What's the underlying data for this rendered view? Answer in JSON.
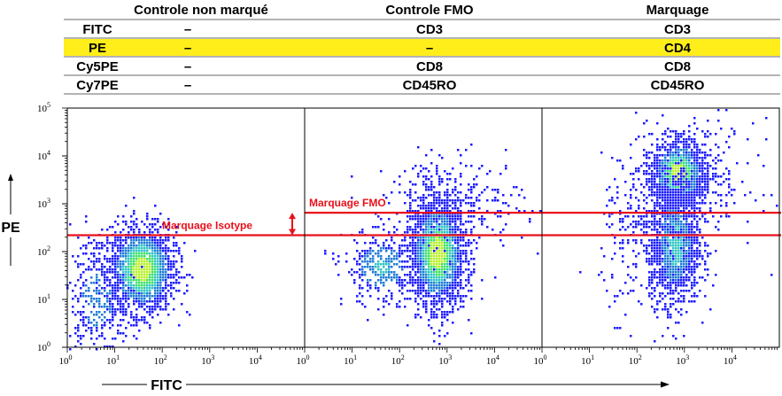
{
  "table": {
    "columns": [
      "",
      "Controle non marqué",
      "Controle FMO",
      "Marquage"
    ],
    "rows": [
      {
        "name": "FITC",
        "cells": [
          "–",
          "CD3",
          "CD3"
        ],
        "highlight": false
      },
      {
        "name": "PE",
        "cells": [
          "–",
          "–",
          "CD4"
        ],
        "highlight": true
      },
      {
        "name": "Cy5PE",
        "cells": [
          "–",
          "CD8",
          "CD8"
        ],
        "highlight": false
      },
      {
        "name": "Cy7PE",
        "cells": [
          "–",
          "CD45RO",
          "CD45RO"
        ],
        "highlight": false
      }
    ],
    "highlight_color": "#ffee1a"
  },
  "chart_data": {
    "type": "scatter",
    "x_scale": "log",
    "y_scale": "log",
    "xlabel": "FITC",
    "ylabel": "PE",
    "xlim": [
      1,
      100000
    ],
    "ylim": [
      1,
      100000
    ],
    "x_tick_values": [
      1,
      10,
      100,
      1000,
      10000
    ],
    "y_tick_values": [
      1,
      10,
      100,
      1000,
      10000,
      100000
    ],
    "tick_base": "10",
    "x_tick_exponents": [
      "0",
      "1",
      "2",
      "3",
      "4"
    ],
    "y_tick_exponents": [
      "0",
      "1",
      "2",
      "3",
      "4",
      "5"
    ],
    "panels": [
      {
        "column": "Controle non marqué",
        "populations": [
          {
            "center": [
              35,
              45
            ],
            "spread": [
              0.22,
              0.28
            ],
            "count": 1800,
            "peak": 1.0
          },
          {
            "center": [
              4,
              10
            ],
            "spread": [
              0.25,
              0.45
            ],
            "count": 350,
            "peak": 0.3
          }
        ]
      },
      {
        "column": "Controle FMO",
        "populations": [
          {
            "center": [
              600,
              100
            ],
            "spread": [
              0.18,
              0.35
            ],
            "count": 2400,
            "peak": 1.0
          },
          {
            "center": [
              40,
              50
            ],
            "spread": [
              0.25,
              0.25
            ],
            "count": 350,
            "peak": 0.45
          },
          {
            "center": [
              1500,
              1000
            ],
            "spread": [
              0.45,
              0.3
            ],
            "count": 300,
            "peak": 0.15
          }
        ]
      },
      {
        "column": "Marquage",
        "populations": [
          {
            "center": [
              700,
              4500
            ],
            "spread": [
              0.18,
              0.22
            ],
            "count": 1300,
            "peak": 1.0
          },
          {
            "center": [
              600,
              150
            ],
            "spread": [
              0.16,
              0.4
            ],
            "count": 1400,
            "peak": 0.55
          },
          {
            "center": [
              150,
              200
            ],
            "spread": [
              0.3,
              0.5
            ],
            "count": 300,
            "peak": 0.15
          },
          {
            "center": [
              1500,
              3000
            ],
            "spread": [
              0.4,
              0.4
            ],
            "count": 300,
            "peak": 0.2
          }
        ]
      }
    ],
    "thresholds": [
      {
        "label": "Marquage Isotype",
        "y": 220,
        "color": "#e8101a",
        "from_panel": 0
      },
      {
        "label": "Marquage FMO",
        "y": 650,
        "color": "#e8101a",
        "from_panel": 1
      }
    ],
    "colormap": [
      "#1a1aff",
      "#1e7bd6",
      "#2fc4c4",
      "#3ee068",
      "#b8f02a"
    ]
  }
}
